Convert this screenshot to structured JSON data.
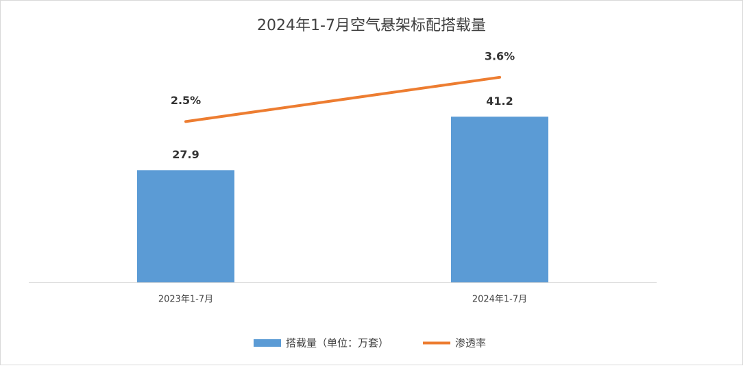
{
  "chart_data": {
    "type": "bar",
    "title": "2024年1-7月空气悬架标配搭载量",
    "categories": [
      "2023年1-7月",
      "2024年1-7月"
    ],
    "series": [
      {
        "name": "搭载量（单位：万套）",
        "type": "bar",
        "color": "#5b9bd5",
        "values": [
          27.9,
          41.2
        ]
      },
      {
        "name": "渗透率",
        "type": "line",
        "axis": "y2",
        "color": "#ed7d31",
        "values": [
          2.5,
          3.6
        ],
        "value_labels": [
          "2.5%",
          "3.6%"
        ]
      }
    ],
    "ylim": [
      0,
      60
    ],
    "y2lim": [
      -1.5,
      4.5
    ],
    "legend": "bottom"
  }
}
